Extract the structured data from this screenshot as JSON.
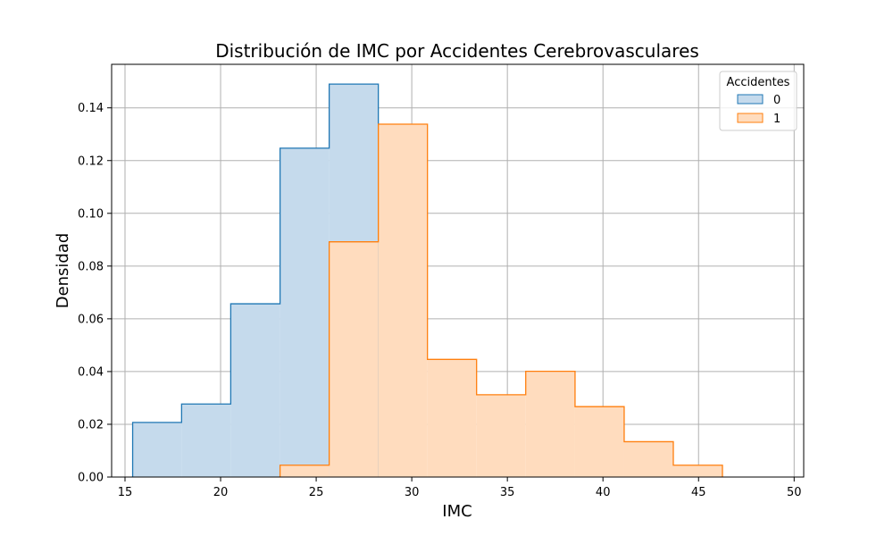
{
  "chart_data": {
    "type": "histogram-step",
    "title": "Distribución de IMC por Accidentes Cerebrovasculares",
    "xlabel": "IMC",
    "ylabel": "Densidad",
    "xlim": [
      14.3,
      50.5
    ],
    "ylim": [
      0,
      0.1565
    ],
    "x_ticks": [
      15,
      20,
      25,
      30,
      35,
      40,
      45,
      50
    ],
    "x_tick_labels": [
      "15",
      "20",
      "25",
      "30",
      "35",
      "40",
      "45",
      "50"
    ],
    "y_ticks": [
      0,
      0.02,
      0.04,
      0.06,
      0.08,
      0.1,
      0.12,
      0.14
    ],
    "y_tick_labels": [
      "0.00",
      "0.02",
      "0.04",
      "0.06",
      "0.08",
      "0.10",
      "0.12",
      "0.14"
    ],
    "grid": true,
    "legend": {
      "title": "Accidentes",
      "placement": "top-right"
    },
    "bin_edges": [
      15.4,
      17.96,
      20.53,
      23.11,
      25.68,
      28.25,
      30.82,
      33.39,
      35.96,
      38.54,
      41.11,
      43.68,
      46.25,
      48.82
    ],
    "series": [
      {
        "name": "0",
        "line_color": "#1f77b4",
        "fill_color": "#c5daec",
        "values": [
          0.0207,
          0.0277,
          0.0657,
          0.1247,
          0.149,
          0,
          0,
          0,
          0,
          0,
          0,
          0,
          0
        ]
      },
      {
        "name": "1",
        "line_color": "#ff7f0e",
        "fill_color": "#ffdcbe",
        "values": [
          0,
          0,
          0,
          0.0045,
          0.0892,
          0.1338,
          0.0446,
          0.0312,
          0.0401,
          0.0267,
          0.0134,
          0.0045,
          0
        ]
      }
    ]
  }
}
